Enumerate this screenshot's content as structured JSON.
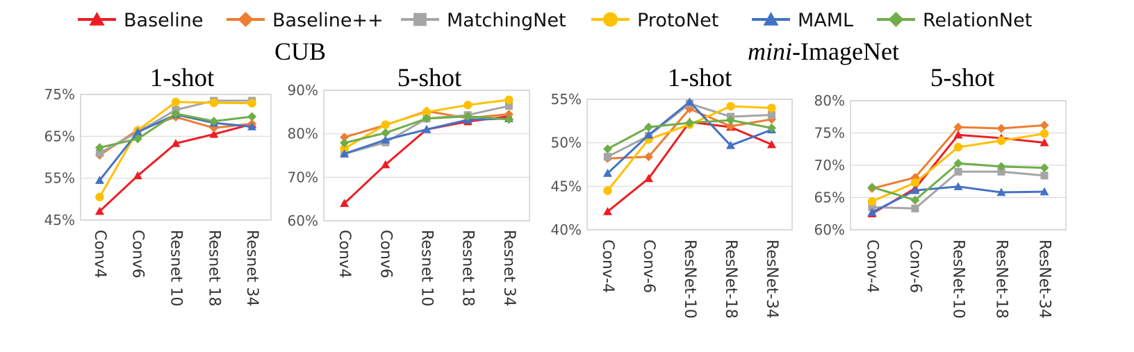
{
  "legend": [
    {
      "name": "Baseline",
      "color": "#ee1d23",
      "marker": "triangle"
    },
    {
      "name": "Baseline++",
      "color": "#ed7d31",
      "marker": "diamond"
    },
    {
      "name": "MatchingNet",
      "color": "#a5a5a5",
      "marker": "square"
    },
    {
      "name": "ProtoNet",
      "color": "#ffc000",
      "marker": "circle"
    },
    {
      "name": "MAML",
      "color": "#4472c4",
      "marker": "triangle"
    },
    {
      "name": "RelationNet",
      "color": "#70ad47",
      "marker": "diamond"
    }
  ],
  "group_titles": {
    "cub": "CUB",
    "mini_italic": "mini",
    "mini_rest": "-ImageNet"
  },
  "chart_data": [
    {
      "type": "line",
      "group": "CUB",
      "title": "1-shot",
      "categories": [
        "Conv4",
        "Conv6",
        "Resnet 10",
        "Resnet 18",
        "Resnet 34"
      ],
      "yticks": [
        "45%",
        "55%",
        "65%",
        "75%"
      ],
      "ylim": [
        45,
        75
      ],
      "series": [
        {
          "name": "Baseline",
          "values": [
            47.1,
            55.6,
            63.3,
            65.5,
            67.9
          ]
        },
        {
          "name": "Baseline++",
          "values": [
            60.5,
            66.5,
            69.6,
            67.0,
            68.0
          ]
        },
        {
          "name": "MatchingNet",
          "values": [
            61.0,
            66.0,
            71.3,
            73.5,
            73.5
          ]
        },
        {
          "name": "ProtoNet",
          "values": [
            50.5,
            66.4,
            73.2,
            73.0,
            72.9
          ]
        },
        {
          "name": "MAML",
          "values": [
            54.5,
            66.0,
            70.2,
            68.2,
            67.3
          ]
        },
        {
          "name": "RelationNet",
          "values": [
            62.3,
            64.4,
            70.4,
            68.6,
            69.7
          ]
        }
      ]
    },
    {
      "type": "line",
      "group": "CUB",
      "title": "5-shot",
      "categories": [
        "Conv4",
        "Conv6",
        "Resnet 10",
        "Resnet 18",
        "Resnet 34"
      ],
      "yticks": [
        "60%",
        "70%",
        "80%",
        "90%"
      ],
      "ylim": [
        60,
        90
      ],
      "series": [
        {
          "name": "Baseline",
          "values": [
            64.0,
            72.9,
            81.0,
            82.8,
            84.0
          ]
        },
        {
          "name": "Baseline++",
          "values": [
            79.2,
            82.0,
            85.2,
            83.6,
            84.5
          ]
        },
        {
          "name": "MatchingNet",
          "values": [
            75.4,
            78.0,
            83.5,
            84.3,
            86.4
          ]
        },
        {
          "name": "ProtoNet",
          "values": [
            76.6,
            82.1,
            85.0,
            86.6,
            87.8
          ]
        },
        {
          "name": "MAML",
          "values": [
            75.4,
            78.6,
            81.0,
            83.2,
            83.5
          ]
        },
        {
          "name": "RelationNet",
          "values": [
            77.9,
            80.2,
            83.5,
            84.0,
            83.3
          ]
        }
      ]
    },
    {
      "type": "line",
      "group": "mini-ImageNet",
      "title": "1-shot",
      "categories": [
        "Conv-4",
        "Conv-6",
        "ResNet-10",
        "ResNet-18",
        "ResNet-34"
      ],
      "yticks": [
        "40%",
        "45%",
        "50%",
        "55%"
      ],
      "ylim": [
        40,
        55
      ],
      "series": [
        {
          "name": "Baseline",
          "values": [
            42.1,
            45.9,
            52.4,
            51.8,
            49.8
          ]
        },
        {
          "name": "Baseline++",
          "values": [
            48.2,
            48.4,
            53.9,
            51.9,
            52.7
          ]
        },
        {
          "name": "MatchingNet",
          "values": [
            48.4,
            50.8,
            54.5,
            53.0,
            53.2
          ]
        },
        {
          "name": "ProtoNet",
          "values": [
            44.5,
            50.4,
            52.1,
            54.2,
            54.0
          ]
        },
        {
          "name": "MAML",
          "values": [
            46.5,
            50.9,
            54.7,
            49.7,
            51.5
          ]
        },
        {
          "name": "RelationNet",
          "values": [
            49.3,
            51.8,
            52.3,
            52.6,
            51.7
          ]
        }
      ]
    },
    {
      "type": "line",
      "group": "mini-ImageNet",
      "title": "5-shot",
      "categories": [
        "Conv-4",
        "Conv-6",
        "ResNet-10",
        "ResNet-18",
        "ResNet-34"
      ],
      "yticks": [
        "60%",
        "65%",
        "70%",
        "75%",
        "80%"
      ],
      "ylim": [
        60,
        80
      ],
      "series": [
        {
          "name": "Baseline",
          "values": [
            62.5,
            66.4,
            74.7,
            74.2,
            73.5
          ]
        },
        {
          "name": "Baseline++",
          "values": [
            66.4,
            68.1,
            75.9,
            75.7,
            76.2
          ]
        },
        {
          "name": "MatchingNet",
          "values": [
            63.5,
            63.3,
            69.0,
            69.0,
            68.4
          ]
        },
        {
          "name": "ProtoNet",
          "values": [
            64.4,
            67.3,
            72.8,
            73.8,
            74.9
          ]
        },
        {
          "name": "MAML",
          "values": [
            62.7,
            66.1,
            66.7,
            65.8,
            65.9
          ]
        },
        {
          "name": "RelationNet",
          "values": [
            66.6,
            64.6,
            70.3,
            69.8,
            69.6
          ]
        }
      ]
    }
  ]
}
